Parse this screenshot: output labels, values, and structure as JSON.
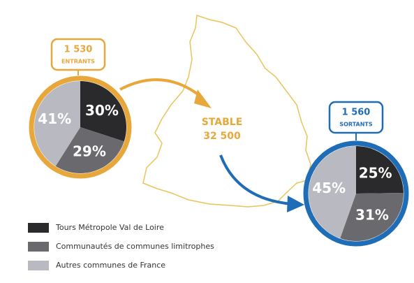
{
  "chart_data": [
    {
      "type": "pie",
      "title": "1 530",
      "subtitle": "ENTRANTS",
      "ring_color": "#e8a73b",
      "categories": [
        "Tours Métropole Val de Loire",
        "Communautés de communes limitrophes",
        "Autres communes de France"
      ],
      "values": [
        30,
        29,
        41
      ],
      "value_labels": [
        "30%",
        "29%",
        "41%"
      ],
      "colors": [
        "#2a2a2c",
        "#6a6a6e",
        "#b9b9c1"
      ],
      "annotations": [
        "STABLE",
        "32 500"
      ]
    },
    {
      "type": "pie",
      "title": "1 560",
      "subtitle": "SORTANTS",
      "ring_color": "#1f6db6",
      "categories": [
        "Tours Métropole Val de Loire",
        "Communautés de communes limitrophes",
        "Autres communes de France"
      ],
      "values": [
        25,
        31,
        45
      ],
      "value_labels": [
        "25%",
        "31%",
        "45%"
      ],
      "colors": [
        "#2a2a2c",
        "#6a6a6e",
        "#b9b9c1"
      ]
    }
  ]
}
